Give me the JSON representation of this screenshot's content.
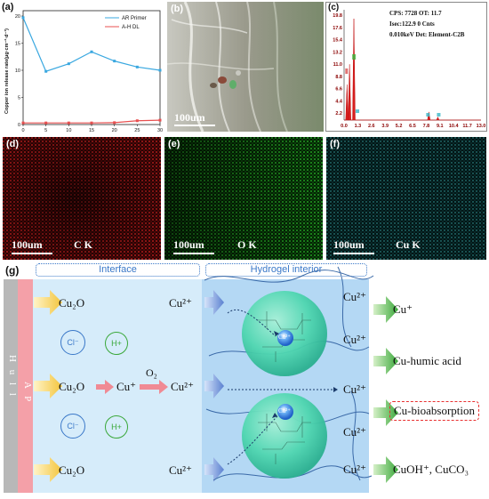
{
  "panel_labels": {
    "a": "(a)",
    "b": "(b)",
    "c": "(c)",
    "d": "(d)",
    "e": "(e)",
    "f": "(f)",
    "g": "(g)"
  },
  "chart_data": {
    "type": "line",
    "x": [
      0,
      5,
      10,
      15,
      20,
      25,
      30
    ],
    "ylabel": "Copper ion release rate(μg·cm⁻²·d⁻¹)",
    "xticks": [
      "0",
      "5",
      "10",
      "15",
      "20",
      "25",
      "30"
    ],
    "yticks": [
      "0",
      "5",
      "10",
      "15",
      "20"
    ],
    "ylim": [
      0,
      20
    ],
    "xlim": [
      0,
      30
    ],
    "legend_position": "top-right",
    "series": [
      {
        "name": "AR Primer",
        "color": "#3aa8e0",
        "values": [
          19.7,
          9.8,
          11.2,
          13.4,
          11.7,
          10.6,
          10.0
        ]
      },
      {
        "name": "A-H DL",
        "color": "#e85050",
        "values": [
          0.3,
          0.3,
          0.3,
          0.3,
          0.35,
          0.7,
          0.8
        ]
      }
    ]
  },
  "sem": {
    "scale": "100um"
  },
  "eds": {
    "info": [
      "CPS: 7728  OT: 11.7",
      "Isec:122.9   0 Cnts",
      "0.010keV  Det: Element-C2B"
    ],
    "yticks": [
      "19.8",
      "17.6",
      "15.4",
      "13.2",
      "11.0",
      "8.8",
      "6.6",
      "4.4",
      "2.2"
    ],
    "xticks": [
      "0.0",
      "1.3",
      "2.6",
      "3.9",
      "5.2",
      "6.5",
      "7.8",
      "9.1",
      "10.4",
      "11.7",
      "13.0"
    ],
    "peaks": [
      "Cu",
      "O",
      "C",
      "Cu",
      "Cu"
    ]
  },
  "maps": [
    {
      "scale": "100um",
      "element": "C K"
    },
    {
      "scale": "100um",
      "element": "O K"
    },
    {
      "scale": "100um",
      "element": "Cu K"
    }
  ],
  "scheme": {
    "hull": "H u l l",
    "ap": "A P",
    "interface": "Interface",
    "hydrogel": "Hydrogel interior",
    "cu2o": "Cu₂O",
    "cu2plus": "Cu²⁺",
    "cuplus": "Cu⁺",
    "o2": "O₂",
    "cl": "Cl⁻",
    "h": "H+",
    "cu_bead": "Cu²⁺",
    "outputs": [
      "Cu⁺",
      "Cu-humic acid",
      "Cu-bioabsorption",
      "CuOH⁺, CuCO₃"
    ],
    "colors": {
      "hull": "#b8b8b8",
      "ap": "#f4a0a8",
      "interface": "#d6ecfa",
      "hydrogel": "#b4d8f4",
      "sphere": "#4fd6b0",
      "arrow_green": "#4fb84f",
      "arrow_yellow": "#f3c94a",
      "arrow_pink": "#f08a94",
      "arrow_blue": "#6a8fd8"
    }
  }
}
